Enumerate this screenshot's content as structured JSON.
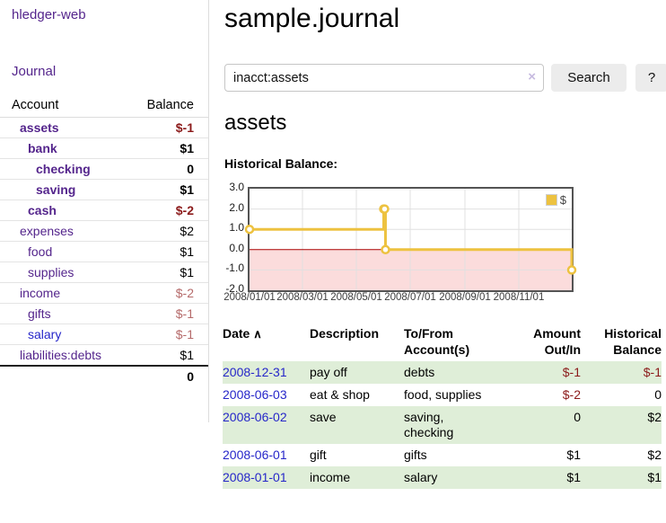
{
  "sidebar": {
    "brand": "hledger-web",
    "nav": {
      "journal_label": "Journal"
    },
    "accounts_table": {
      "headers": {
        "account": "Account",
        "balance": "Balance"
      },
      "rows": [
        {
          "name": "assets",
          "depth": 1,
          "balance": "$-1",
          "bold": true,
          "negative": "strong"
        },
        {
          "name": "bank",
          "depth": 2,
          "balance": "$1",
          "bold": true,
          "negative": "none"
        },
        {
          "name": "checking",
          "depth": 3,
          "balance": "0",
          "bold": true,
          "negative": "none"
        },
        {
          "name": "saving",
          "depth": 3,
          "balance": "$1",
          "bold": true,
          "negative": "none"
        },
        {
          "name": "cash",
          "depth": 2,
          "balance": "$-2",
          "bold": true,
          "negative": "strong"
        },
        {
          "name": "expenses",
          "depth": 1,
          "balance": "$2",
          "bold": false,
          "negative": "none"
        },
        {
          "name": "food",
          "depth": 2,
          "balance": "$1",
          "bold": false,
          "negative": "none"
        },
        {
          "name": "supplies",
          "depth": 2,
          "balance": "$1",
          "bold": false,
          "negative": "none"
        },
        {
          "name": "income",
          "depth": 1,
          "balance": "$-2",
          "bold": false,
          "negative": "soft"
        },
        {
          "name": "gifts",
          "depth": 2,
          "balance": "$-1",
          "bold": false,
          "negative": "soft"
        },
        {
          "name": "salary",
          "depth": 2,
          "balance": "$-1",
          "bold": false,
          "negative": "soft",
          "link_color": "blue"
        },
        {
          "name": "liabilities:debts",
          "depth": 1,
          "balance": "$1",
          "bold": false,
          "negative": "none"
        }
      ],
      "total": "0"
    }
  },
  "main": {
    "title": "sample.journal",
    "search": {
      "value": "inacct:assets",
      "clear_icon": "×",
      "search_label": "Search",
      "help_label": "?"
    },
    "account_heading": "assets",
    "chart_label": "Historical Balance:",
    "register_table": {
      "headers": {
        "date": "Date",
        "sort_icon": "∧",
        "description": "Description",
        "accounts": "To/From Account(s)",
        "amount": "Amount Out/In",
        "balance": "Historical Balance"
      },
      "rows": [
        {
          "date": "2008-12-31",
          "description": "pay off",
          "accounts": "debts",
          "amount": "$-1",
          "balance": "$-1",
          "amount_negative": true,
          "balance_negative": true
        },
        {
          "date": "2008-06-03",
          "description": "eat & shop",
          "accounts": "food, supplies",
          "amount": "$-2",
          "balance": "0",
          "amount_negative": true,
          "balance_negative": false
        },
        {
          "date": "2008-06-02",
          "description": "save",
          "accounts": "saving, checking",
          "amount": "0",
          "balance": "$2",
          "amount_negative": false,
          "balance_negative": false
        },
        {
          "date": "2008-06-01",
          "description": "gift",
          "accounts": "gifts",
          "amount": "$1",
          "balance": "$2",
          "amount_negative": false,
          "balance_negative": false
        },
        {
          "date": "2008-01-01",
          "description": "income",
          "accounts": "salary",
          "amount": "$1",
          "balance": "$1",
          "amount_negative": false,
          "balance_negative": false
        }
      ]
    }
  },
  "chart_data": {
    "type": "line",
    "title": "Historical Balance",
    "style": "step",
    "series": [
      {
        "name": "$",
        "color": "#edc240",
        "points": [
          [
            "2008-01-01",
            1
          ],
          [
            "2008-06-01",
            2
          ],
          [
            "2008-06-02",
            2
          ],
          [
            "2008-06-03",
            0
          ],
          [
            "2008-12-31",
            -1
          ]
        ]
      }
    ],
    "x_range": [
      "2008-01-01",
      "2008-12-31"
    ],
    "x_ticks": [
      "2008/01/01",
      "2008/03/01",
      "2008/05/01",
      "2008/07/01",
      "2008/09/01",
      "2008/11/01"
    ],
    "y_ticks": [
      "3.0",
      "2.0",
      "1.0",
      "0.0",
      "-1.0",
      "-2.0"
    ],
    "ylim": [
      -2,
      3
    ],
    "grid": true,
    "legend_position": "top-right",
    "negative_region_color": "#fbdcdc",
    "zero_line_color": "#aa0000",
    "grid_color": "#e0e0e0",
    "border_color": "#545454"
  }
}
